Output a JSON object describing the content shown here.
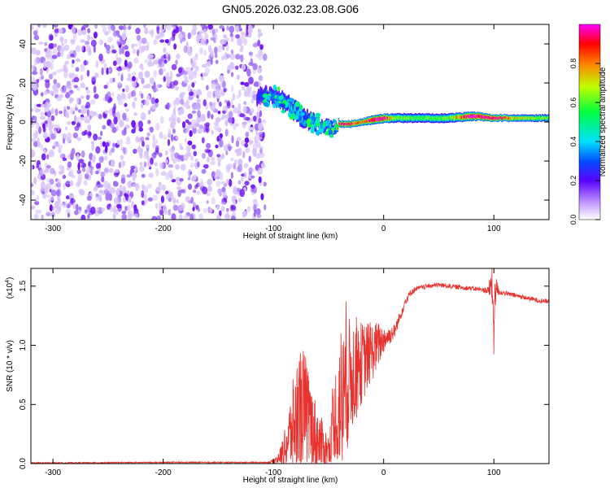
{
  "title": "GN05.2026.032.23.08.G06",
  "chart_data": [
    {
      "type": "heatmap",
      "name": "spectrogram",
      "xlabel": "Height of straight line (km)",
      "ylabel": "Frequency (Hz)",
      "xlim": [
        -320,
        150
      ],
      "ylim": [
        -50,
        50
      ],
      "xticks": [
        -300,
        -200,
        -100,
        0,
        100
      ],
      "yticks": [
        -40,
        -20,
        0,
        20,
        40
      ],
      "noise_region_x": [
        -320,
        -112
      ],
      "track": {
        "x": [
          -115,
          -105,
          -95,
          -85,
          -75,
          -65,
          -55,
          -45,
          -40,
          -30,
          -20,
          -10,
          0,
          10,
          30,
          60,
          80,
          100,
          120,
          150
        ],
        "freq": [
          13,
          14,
          12,
          8,
          3,
          0,
          -2,
          -3,
          -1,
          -1,
          0,
          1,
          2,
          2,
          2,
          2,
          3,
          2,
          2,
          2
        ],
        "width": [
          6,
          6,
          6,
          7,
          7,
          6,
          5,
          4,
          3,
          3,
          3,
          4,
          4,
          4,
          4,
          4,
          4,
          3,
          3,
          3
        ],
        "amplitude": [
          0.15,
          0.2,
          0.25,
          0.3,
          0.3,
          0.3,
          0.3,
          0.4,
          0.8,
          0.8,
          0.7,
          0.9,
          0.85,
          0.5,
          0.45,
          0.5,
          0.9,
          0.9,
          0.6,
          0.5
        ]
      },
      "colorbar": {
        "label": "Normalized spectral amplitude",
        "range": [
          0,
          1
        ],
        "ticks": [
          "0.0",
          "0.2",
          "0.4",
          "0.6",
          "0.8"
        ]
      }
    },
    {
      "type": "line",
      "name": "snr",
      "xlabel": "Height of straight line (km)",
      "ylabel": "SNR (10 * v/v)",
      "yscale_label": "(x10",
      "yscale_exp": "4",
      "xlim": [
        -320,
        150
      ],
      "ylim": [
        0,
        1.65
      ],
      "xticks": [
        -300,
        -200,
        -100,
        0,
        100
      ],
      "yticks": [
        "0.0",
        "0.5",
        "1.0",
        "1.5"
      ],
      "color": "#e8322e",
      "series": {
        "x": [
          -320,
          -200,
          -105,
          -100,
          -95,
          -90,
          -85,
          -80,
          -75,
          -70,
          -65,
          -60,
          -55,
          -50,
          -45,
          -40,
          -35,
          -30,
          -25,
          -20,
          -15,
          -10,
          -5,
          0,
          5,
          10,
          15,
          20,
          25,
          30,
          40,
          50,
          60,
          70,
          80,
          90,
          95,
          98,
          100,
          102,
          105,
          110,
          120,
          130,
          140,
          150
        ],
        "y": [
          0.005,
          0.01,
          0.01,
          0.02,
          0.05,
          0.12,
          0.25,
          0.35,
          0.45,
          0.4,
          0.3,
          0.2,
          0.15,
          0.1,
          0.25,
          0.4,
          0.6,
          0.75,
          0.8,
          0.85,
          0.9,
          0.95,
          1.0,
          1.05,
          1.08,
          1.12,
          1.25,
          1.38,
          1.45,
          1.48,
          1.5,
          1.51,
          1.5,
          1.49,
          1.48,
          1.47,
          1.46,
          1.52,
          1.2,
          1.5,
          1.45,
          1.44,
          1.42,
          1.4,
          1.38,
          1.37
        ],
        "spread": [
          0.005,
          0.005,
          0.005,
          0.02,
          0.05,
          0.15,
          0.3,
          0.5,
          0.6,
          0.5,
          0.35,
          0.3,
          0.2,
          0.15,
          0.5,
          0.8,
          0.6,
          0.5,
          0.45,
          0.35,
          0.3,
          0.25,
          0.2,
          0.12,
          0.08,
          0.06,
          0.05,
          0.04,
          0.03,
          0.02,
          0.02,
          0.02,
          0.02,
          0.02,
          0.02,
          0.02,
          0.04,
          0.15,
          0.3,
          0.08,
          0.03,
          0.02,
          0.02,
          0.02,
          0.02,
          0.02
        ]
      }
    }
  ]
}
